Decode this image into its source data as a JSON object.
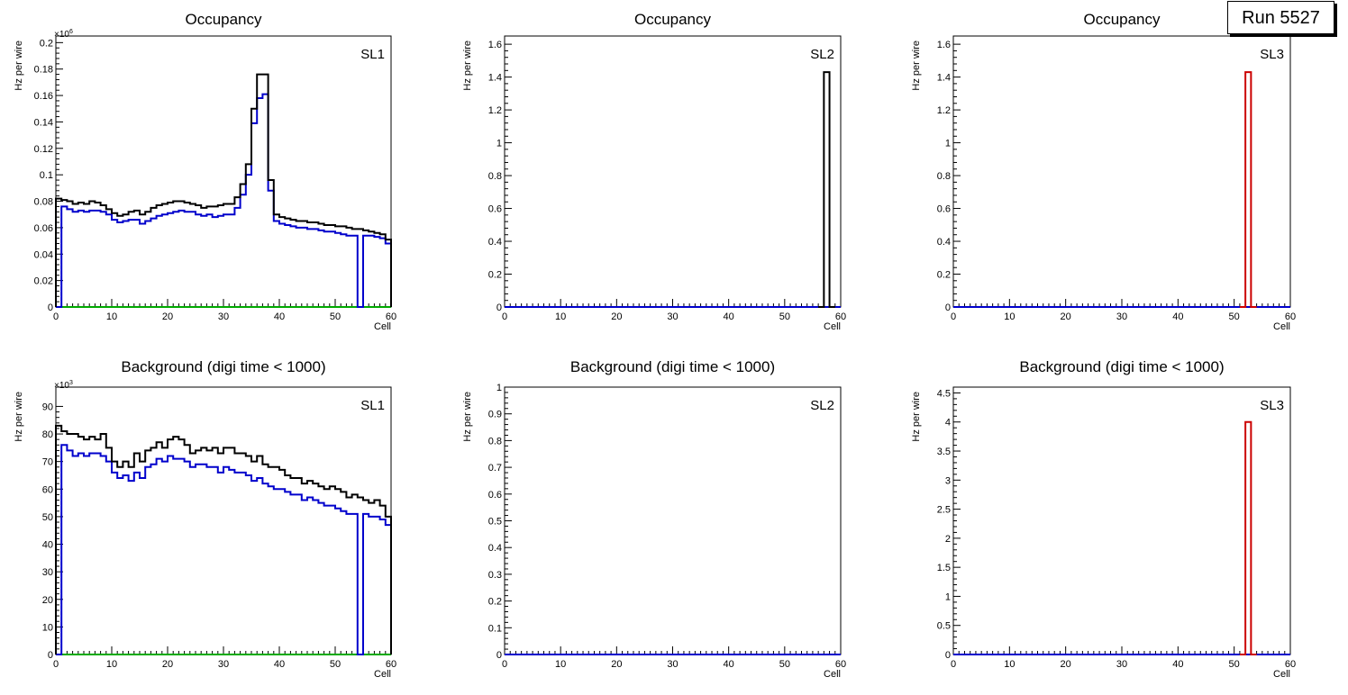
{
  "run_label": "Run 5527",
  "colors": {
    "total": "#000000",
    "signal": "#0000cc",
    "noise": "#00aa00",
    "red": "#cc0000"
  },
  "chart_data": [
    {
      "type": "histogram-step",
      "title": "Occupancy",
      "tag": "SL1",
      "xlabel": "Cell",
      "ylabel": "Hz per wire",
      "exponent": "6",
      "xlim": [
        0,
        60
      ],
      "ylim": [
        0,
        0.205
      ],
      "yticks": [
        0,
        0.02,
        0.04,
        0.06,
        0.08,
        0.1,
        0.12,
        0.14,
        0.16,
        0.18,
        0.2
      ],
      "ytick_labels": [
        "0",
        "0.02",
        "0.04",
        "0.06",
        "0.08",
        "0.1",
        "0.12",
        "0.14",
        "0.16",
        "0.18",
        "0.2"
      ],
      "xticks": [
        0,
        10,
        20,
        30,
        40,
        50,
        60
      ],
      "series": [
        {
          "color": "#000000",
          "start": 0,
          "values": [
            0.082,
            0.081,
            0.08,
            0.078,
            0.079,
            0.078,
            0.08,
            0.079,
            0.077,
            0.074,
            0.071,
            0.069,
            0.07,
            0.072,
            0.073,
            0.07,
            0.072,
            0.075,
            0.077,
            0.078,
            0.079,
            0.08,
            0.08,
            0.079,
            0.078,
            0.077,
            0.075,
            0.076,
            0.076,
            0.077,
            0.078,
            0.078,
            0.083,
            0.093,
            0.108,
            0.15,
            0.176,
            0.176,
            0.096,
            0.07,
            0.068,
            0.067,
            0.066,
            0.065,
            0.065,
            0.064,
            0.064,
            0.063,
            0.062,
            0.062,
            0.061,
            0.061,
            0.06,
            0.059,
            0.059,
            0.058,
            0.057,
            0.056,
            0.055,
            0.051
          ]
        },
        {
          "color": "#0000cc",
          "start": 0,
          "values": [
            0.0,
            0.076,
            0.074,
            0.072,
            0.073,
            0.072,
            0.073,
            0.073,
            0.072,
            0.07,
            0.066,
            0.064,
            0.065,
            0.066,
            0.066,
            0.063,
            0.065,
            0.067,
            0.069,
            0.07,
            0.071,
            0.072,
            0.073,
            0.072,
            0.072,
            0.07,
            0.069,
            0.07,
            0.068,
            0.069,
            0.07,
            0.07,
            0.075,
            0.085,
            0.1,
            0.139,
            0.158,
            0.161,
            0.088,
            0.065,
            0.063,
            0.062,
            0.061,
            0.06,
            0.06,
            0.059,
            0.059,
            0.058,
            0.057,
            0.057,
            0.056,
            0.055,
            0.054,
            0.054,
            0.0,
            0.054,
            0.054,
            0.053,
            0.052,
            0.048
          ]
        },
        {
          "color": "#00aa00",
          "start": 0,
          "values": "flat-0-60"
        }
      ]
    },
    {
      "type": "histogram-step",
      "title": "Occupancy",
      "tag": "SL2",
      "xlabel": "Cell",
      "ylabel": "Hz per wire",
      "exponent": "",
      "xlim": [
        0,
        60
      ],
      "ylim": [
        0,
        1.65
      ],
      "yticks": [
        0,
        0.2,
        0.4,
        0.6,
        0.8,
        1,
        1.2,
        1.4,
        1.6
      ],
      "ytick_labels": [
        "0",
        "0.2",
        "0.4",
        "0.6",
        "0.8",
        "1",
        "1.2",
        "1.4",
        "1.6"
      ],
      "xticks": [
        0,
        10,
        20,
        30,
        40,
        50,
        60
      ],
      "series": [
        {
          "color": "#000000",
          "start": 56,
          "values": [
            0.0,
            1.43,
            0.0
          ]
        },
        {
          "color": "#0000cc",
          "start": 0,
          "values": "flat-0-60"
        }
      ]
    },
    {
      "type": "histogram-step",
      "title": "Occupancy",
      "tag": "SL3",
      "xlabel": "Cell",
      "ylabel": "Hz per wire",
      "exponent": "",
      "xlim": [
        0,
        60
      ],
      "ylim": [
        0,
        1.65
      ],
      "yticks": [
        0,
        0.2,
        0.4,
        0.6,
        0.8,
        1,
        1.2,
        1.4,
        1.6
      ],
      "ytick_labels": [
        "0",
        "0.2",
        "0.4",
        "0.6",
        "0.8",
        "1",
        "1.2",
        "1.4",
        "1.6"
      ],
      "xticks": [
        0,
        10,
        20,
        30,
        40,
        50,
        60
      ],
      "series": [
        {
          "color": "#cc0000",
          "start": 51,
          "values": [
            0.0,
            1.43,
            0.0
          ]
        },
        {
          "color": "#0000cc",
          "start": 0,
          "values": "flat-0-60"
        }
      ]
    },
    {
      "type": "histogram-step",
      "title": "Background (digi time < 1000)",
      "tag": "SL1",
      "xlabel": "Cell",
      "ylabel": "Hz per wire",
      "exponent": "3",
      "xlim": [
        0,
        60
      ],
      "ylim": [
        0,
        97
      ],
      "yticks": [
        0,
        10,
        20,
        30,
        40,
        50,
        60,
        70,
        80,
        90
      ],
      "ytick_labels": [
        "0",
        "10",
        "20",
        "30",
        "40",
        "50",
        "60",
        "70",
        "80",
        "90"
      ],
      "xticks": [
        0,
        10,
        20,
        30,
        40,
        50,
        60
      ],
      "series": [
        {
          "color": "#000000",
          "start": 0,
          "values": [
            83,
            81,
            80,
            80,
            79,
            78,
            79,
            78,
            80,
            75,
            70,
            68,
            70,
            68,
            73,
            70,
            74,
            75,
            77,
            75,
            78,
            79,
            78,
            76,
            73,
            74,
            75,
            74,
            75,
            73,
            75,
            75,
            73,
            73,
            72,
            70,
            72,
            69,
            68,
            68,
            67,
            65,
            64,
            64,
            62,
            63,
            62,
            61,
            60,
            61,
            60,
            59,
            57,
            58,
            57,
            56,
            55,
            56,
            54,
            50
          ]
        },
        {
          "color": "#0000cc",
          "start": 0,
          "values": [
            0,
            76,
            74,
            72,
            73,
            72,
            73,
            73,
            72,
            70,
            66,
            64,
            65,
            63,
            66,
            64,
            68,
            69,
            71,
            70,
            72,
            71,
            71,
            70,
            68,
            69,
            69,
            68,
            68,
            66,
            68,
            67,
            66,
            66,
            65,
            63,
            64,
            62,
            61,
            60,
            60,
            59,
            58,
            58,
            56,
            57,
            56,
            55,
            54,
            54,
            53,
            52,
            51,
            51,
            0,
            51,
            50,
            50,
            49,
            47
          ]
        },
        {
          "color": "#00aa00",
          "start": 0,
          "values": "flat-0-60"
        }
      ]
    },
    {
      "type": "histogram-step",
      "title": "Background (digi time < 1000)",
      "tag": "SL2",
      "xlabel": "Cell",
      "ylabel": "Hz per wire",
      "exponent": "",
      "xlim": [
        0,
        60
      ],
      "ylim": [
        0,
        1.0
      ],
      "yticks": [
        0,
        0.1,
        0.2,
        0.3,
        0.4,
        0.5,
        0.6,
        0.7,
        0.8,
        0.9,
        1
      ],
      "ytick_labels": [
        "0",
        "0.1",
        "0.2",
        "0.3",
        "0.4",
        "0.5",
        "0.6",
        "0.7",
        "0.8",
        "0.9",
        "1"
      ],
      "xticks": [
        0,
        10,
        20,
        30,
        40,
        50,
        60
      ],
      "series": [
        {
          "color": "#0000cc",
          "start": 0,
          "values": "flat-0-60"
        }
      ]
    },
    {
      "type": "histogram-step",
      "title": "Background (digi time < 1000)",
      "tag": "SL3",
      "xlabel": "Cell",
      "ylabel": "Hz per wire",
      "exponent": "",
      "xlim": [
        0,
        60
      ],
      "ylim": [
        0,
        4.6
      ],
      "yticks": [
        0,
        0.5,
        1,
        1.5,
        2,
        2.5,
        3,
        3.5,
        4,
        4.5
      ],
      "ytick_labels": [
        "0",
        "0.5",
        "1",
        "1.5",
        "2",
        "2.5",
        "3",
        "3.5",
        "4",
        "4.5"
      ],
      "xticks": [
        0,
        10,
        20,
        30,
        40,
        50,
        60
      ],
      "series": [
        {
          "color": "#cc0000",
          "start": 51,
          "values": [
            0.0,
            4.0,
            0.0
          ]
        },
        {
          "color": "#0000cc",
          "start": 0,
          "values": "flat-0-60"
        }
      ]
    }
  ]
}
